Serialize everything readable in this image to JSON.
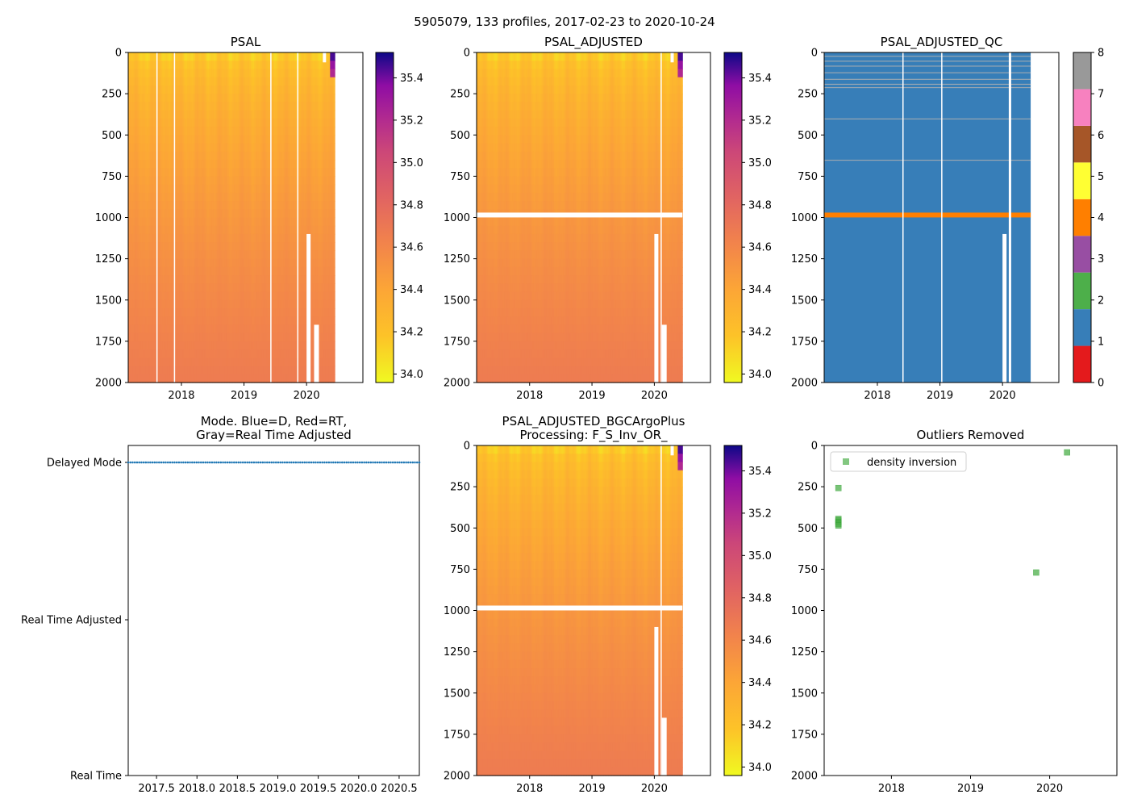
{
  "figure": {
    "suptitle": "5905079, 133 profiles, 2017-02-23 to 2020-10-24"
  },
  "chart_data": [
    {
      "id": "psal",
      "type": "heatmap",
      "title": "PSAL",
      "ylim": [
        2000,
        0
      ],
      "xlim": [
        2017.15,
        2020.9
      ],
      "y_ticks": [
        0,
        250,
        500,
        750,
        1000,
        1250,
        1500,
        1750,
        2000
      ],
      "x_ticks": [
        2018,
        2019,
        2020
      ],
      "x_tick_labels": [
        "2018",
        "2019",
        "2020"
      ],
      "colorbar": {
        "cmap": "plasma_r",
        "range": [
          33.96,
          35.52
        ],
        "ticks": [
          34.0,
          34.2,
          34.4,
          34.6,
          34.8,
          35.0,
          35.2,
          35.4
        ],
        "tick_labels": [
          "34.0",
          "34.2",
          "34.4",
          "34.6",
          "34.8",
          "35.0",
          "35.2",
          "35.4"
        ]
      },
      "salinity_surface": 34.15,
      "salinity_deep": 34.68,
      "data_end_year": 2020.45,
      "missing_profiles_years": [
        2017.6,
        2017.88,
        2019.42,
        2019.85
      ],
      "show_qc_gap": false
    },
    {
      "id": "psal_adjusted",
      "type": "heatmap",
      "title": "PSAL_ADJUSTED",
      "ylim": [
        2000,
        0
      ],
      "xlim": [
        2017.15,
        2020.9
      ],
      "y_ticks": [
        0,
        250,
        500,
        750,
        1000,
        1250,
        1500,
        1750,
        2000
      ],
      "x_ticks": [
        2018,
        2019,
        2020
      ],
      "x_tick_labels": [
        "2018",
        "2019",
        "2020"
      ],
      "colorbar": {
        "cmap": "plasma_r",
        "range": [
          33.96,
          35.52
        ],
        "ticks": [
          34.0,
          34.2,
          34.4,
          34.6,
          34.8,
          35.0,
          35.2,
          35.4
        ],
        "tick_labels": [
          "34.0",
          "34.2",
          "34.4",
          "34.6",
          "34.8",
          "35.0",
          "35.2",
          "35.4"
        ]
      },
      "salinity_surface": 34.15,
      "salinity_deep": 34.68,
      "data_end_year": 2020.45,
      "missing_profiles_years": [
        2020.1
      ],
      "show_qc_gap": true,
      "qc_gap_depth": 985
    },
    {
      "id": "psal_adjusted_qc",
      "type": "heatmap",
      "title": "PSAL_ADJUSTED_QC",
      "ylim": [
        2000,
        0
      ],
      "xlim": [
        2017.15,
        2020.9
      ],
      "y_ticks": [
        0,
        250,
        500,
        750,
        1000,
        1250,
        1500,
        1750,
        2000
      ],
      "x_ticks": [
        2018,
        2019,
        2020
      ],
      "x_tick_labels": [
        "2018",
        "2019",
        "2020"
      ],
      "dominant_flag": 1,
      "bad_flag_depth": 985,
      "bad_flag": 4,
      "colorbar": {
        "categories": [
          0,
          1,
          2,
          3,
          4,
          5,
          6,
          7,
          8
        ],
        "tick_labels": [
          "0",
          "1",
          "2",
          "3",
          "4",
          "5",
          "6",
          "7",
          "8"
        ],
        "colors": [
          "#e41a1c",
          "#377eb8",
          "#4daf4a",
          "#984ea3",
          "#ff7f00",
          "#ffff33",
          "#a65628",
          "#f781bf",
          "#999999"
        ]
      },
      "data_end_year": 2020.45
    },
    {
      "id": "mode",
      "type": "scatter",
      "title_lines": [
        "Mode. Blue=D, Red=RT,",
        "Gray=Real Time Adjusted"
      ],
      "xlim": [
        2017.15,
        2020.75
      ],
      "x_ticks": [
        2017.5,
        2018.0,
        2018.5,
        2019.0,
        2019.5,
        2020.0,
        2020.5
      ],
      "x_tick_labels": [
        "2017.5",
        "2018.0",
        "2018.5",
        "2019.0",
        "2019.5",
        "2020.0",
        "2020.5"
      ],
      "y_categories": [
        "Real Time",
        "Real Time Adjusted",
        "Delayed Mode"
      ],
      "points_mode": "Delayed Mode",
      "points_range": [
        2017.15,
        2020.75
      ],
      "n_points": 133,
      "point_color": "#1f77b4"
    },
    {
      "id": "psal_bgc",
      "type": "heatmap",
      "title_lines": [
        "PSAL_ADJUSTED_BGCArgoPlus",
        "Processing: F_S_Inv_OR_"
      ],
      "ylim": [
        2000,
        0
      ],
      "xlim": [
        2017.15,
        2020.9
      ],
      "y_ticks": [
        0,
        250,
        500,
        750,
        1000,
        1250,
        1500,
        1750,
        2000
      ],
      "x_ticks": [
        2018,
        2019,
        2020
      ],
      "x_tick_labels": [
        "2018",
        "2019",
        "2020"
      ],
      "colorbar": {
        "cmap": "plasma_r",
        "range": [
          33.96,
          35.52
        ],
        "ticks": [
          34.0,
          34.2,
          34.4,
          34.6,
          34.8,
          35.0,
          35.2,
          35.4
        ],
        "tick_labels": [
          "34.0",
          "34.2",
          "34.4",
          "34.6",
          "34.8",
          "35.0",
          "35.2",
          "35.4"
        ]
      },
      "salinity_surface": 34.15,
      "salinity_deep": 34.68,
      "data_end_year": 2020.45,
      "missing_profiles_years": [
        2020.1
      ],
      "show_qc_gap": true,
      "qc_gap_depth": 985
    },
    {
      "id": "outliers",
      "type": "scatter",
      "title": "Outliers Removed",
      "ylim": [
        2000,
        0
      ],
      "xlim": [
        2017.15,
        2020.85
      ],
      "y_ticks": [
        0,
        250,
        500,
        750,
        1000,
        1250,
        1500,
        1750,
        2000
      ],
      "x_ticks": [
        2018,
        2019,
        2020
      ],
      "x_tick_labels": [
        "2018",
        "2019",
        "2020"
      ],
      "legend": {
        "label": "density inversion",
        "color": "#4daf4a",
        "location": "upper-left"
      },
      "points": [
        {
          "x": 2017.33,
          "y": 258
        },
        {
          "x": 2017.33,
          "y": 445
        },
        {
          "x": 2017.33,
          "y": 455
        },
        {
          "x": 2017.33,
          "y": 465
        },
        {
          "x": 2017.33,
          "y": 475
        },
        {
          "x": 2017.33,
          "y": 485
        },
        {
          "x": 2019.83,
          "y": 770
        },
        {
          "x": 2020.22,
          "y": 42
        }
      ]
    }
  ]
}
